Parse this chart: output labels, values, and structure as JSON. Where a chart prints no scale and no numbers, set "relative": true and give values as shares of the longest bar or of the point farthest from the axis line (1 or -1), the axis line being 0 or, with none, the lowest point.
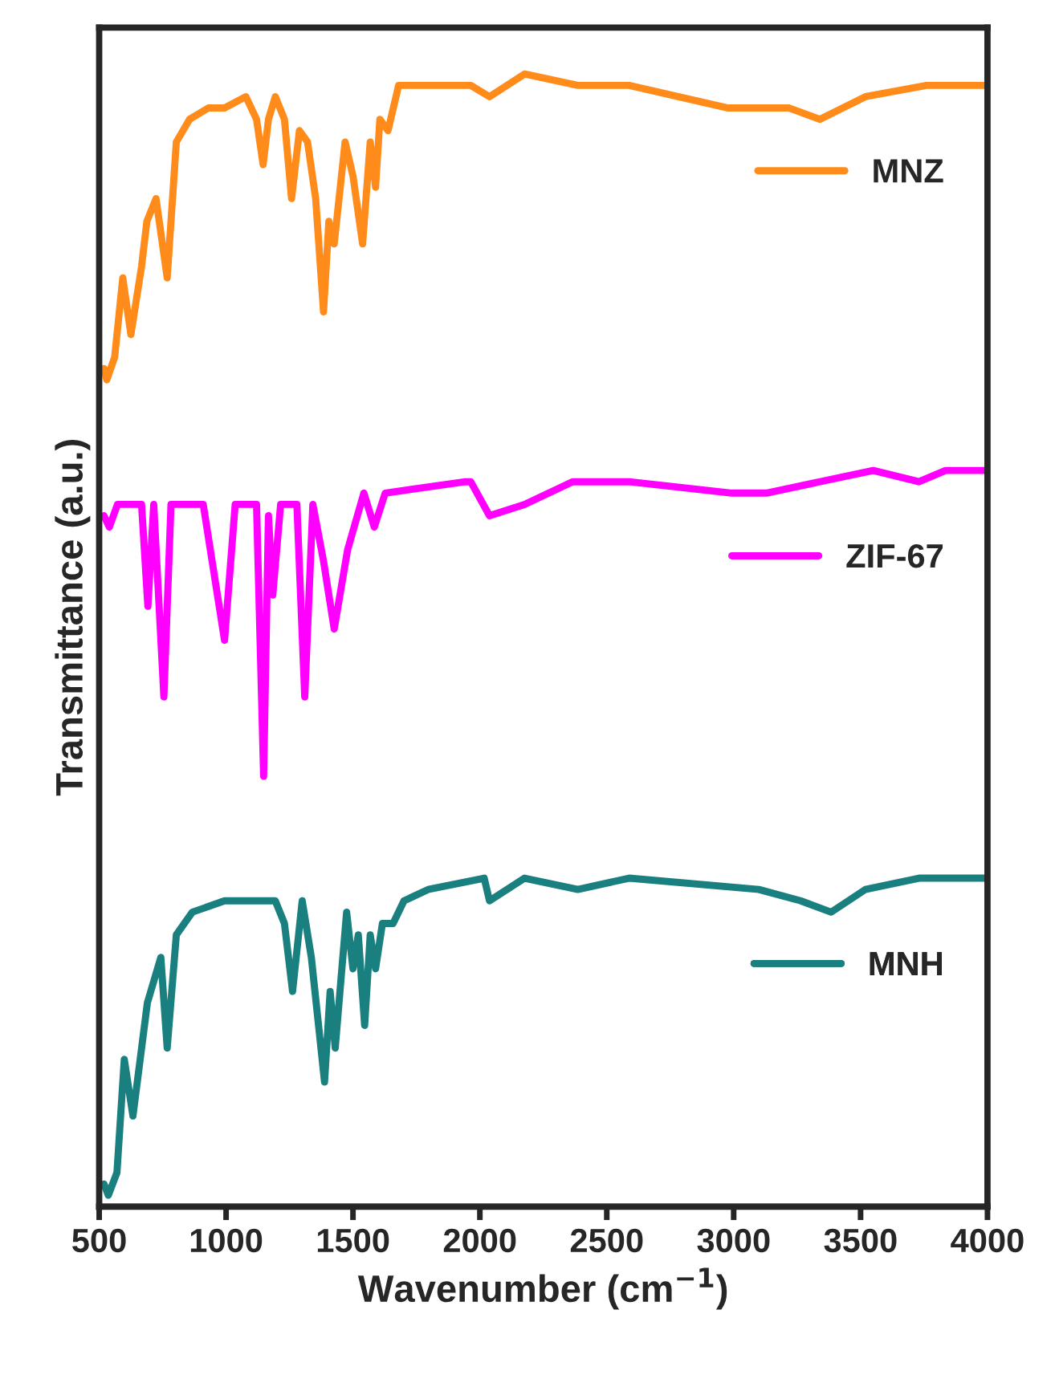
{
  "chart_data": {
    "type": "line",
    "relative": true,
    "xlabel": "Wavenumber (cm$^{−1}$)",
    "ylabel": "Transmittance (a.u.)",
    "xlim": [
      500,
      4000
    ],
    "xticks": [
      500,
      1000,
      1500,
      2000,
      2500,
      3000,
      3500,
      4000
    ],
    "tick_labels": "x",
    "grid": false,
    "legend": "right",
    "marker": "none",
    "line_style": "solid",
    "series": [
      {
        "name": "MNZ",
        "color": "#ff8c1a",
        "x": [
          519,
          530,
          561,
          593,
          625,
          667,
          688,
          724,
          768,
          804,
          856,
          930,
          994,
          1078,
          1120,
          1146,
          1167,
          1194,
          1230,
          1258,
          1289,
          1321,
          1353,
          1384,
          1405,
          1426,
          1469,
          1500,
          1538,
          1568,
          1589,
          1606,
          1638,
          1680,
          1774,
          1964,
          2038,
          2176,
          2386,
          2588,
          2978,
          3219,
          3339,
          3519,
          3760,
          4000
        ],
        "values": [
          0.74,
          0.73,
          0.75,
          0.82,
          0.77,
          0.83,
          0.87,
          0.89,
          0.82,
          0.94,
          0.96,
          0.97,
          0.97,
          0.98,
          0.96,
          0.92,
          0.96,
          0.98,
          0.96,
          0.89,
          0.95,
          0.94,
          0.89,
          0.79,
          0.87,
          0.85,
          0.94,
          0.91,
          0.85,
          0.94,
          0.9,
          0.96,
          0.95,
          0.99,
          0.99,
          0.99,
          0.98,
          1.0,
          0.99,
          0.99,
          0.97,
          0.97,
          0.96,
          0.98,
          0.99,
          0.99
        ]
      },
      {
        "name": "ZIF-67",
        "color": "#ff00ff",
        "x": [
          519,
          540,
          572,
          667,
          692,
          715,
          755,
          783,
          910,
          994,
          1036,
          1120,
          1148,
          1167,
          1184,
          1215,
          1279,
          1310,
          1342,
          1384,
          1426,
          1479,
          1543,
          1584,
          1627,
          1943,
          1964,
          2038,
          2176,
          2365,
          2588,
          2993,
          3129,
          3550,
          3730,
          3835,
          4000
        ],
        "values": [
          0.61,
          0.6,
          0.62,
          0.62,
          0.53,
          0.62,
          0.45,
          0.62,
          0.62,
          0.5,
          0.62,
          0.62,
          0.38,
          0.61,
          0.54,
          0.62,
          0.62,
          0.45,
          0.62,
          0.57,
          0.51,
          0.58,
          0.63,
          0.6,
          0.63,
          0.64,
          0.64,
          0.61,
          0.62,
          0.64,
          0.64,
          0.63,
          0.63,
          0.65,
          0.64,
          0.65,
          0.65
        ]
      },
      {
        "name": "MNH",
        "color": "#1a7f7f",
        "x": [
          519,
          536,
          570,
          599,
          633,
          690,
          743,
          768,
          804,
          867,
          994,
          1163,
          1194,
          1230,
          1262,
          1300,
          1336,
          1388,
          1410,
          1430,
          1475,
          1500,
          1521,
          1546,
          1568,
          1589,
          1616,
          1658,
          1701,
          1796,
          2017,
          2038,
          2176,
          2386,
          2588,
          3099,
          3264,
          3384,
          3519,
          3730,
          4000
        ],
        "values": [
          0.02,
          0.01,
          0.03,
          0.13,
          0.08,
          0.18,
          0.22,
          0.14,
          0.24,
          0.26,
          0.27,
          0.27,
          0.27,
          0.25,
          0.19,
          0.27,
          0.22,
          0.11,
          0.19,
          0.14,
          0.26,
          0.21,
          0.24,
          0.16,
          0.24,
          0.21,
          0.25,
          0.25,
          0.27,
          0.28,
          0.29,
          0.27,
          0.29,
          0.28,
          0.29,
          0.28,
          0.27,
          0.26,
          0.28,
          0.29,
          0.29
        ]
      }
    ]
  }
}
